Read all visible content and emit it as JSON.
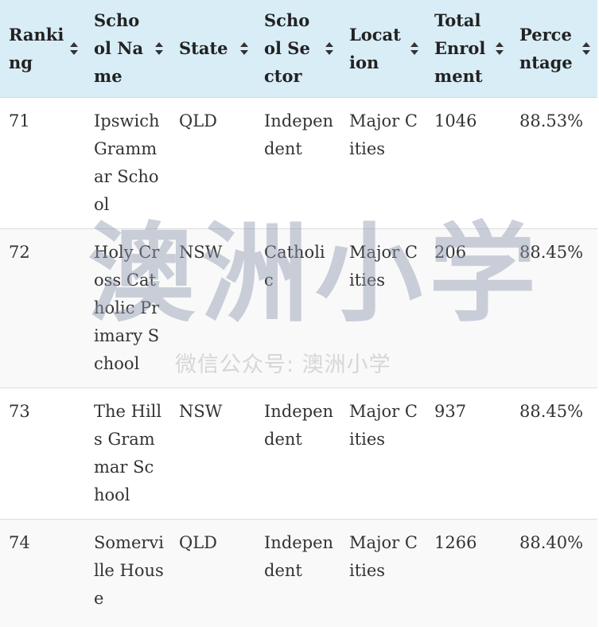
{
  "table": {
    "headers": [
      {
        "label": "Ranking"
      },
      {
        "label": "School Name"
      },
      {
        "label": "State"
      },
      {
        "label": "School Sector"
      },
      {
        "label": "Location"
      },
      {
        "label": "Total Enrolment"
      },
      {
        "label": "Percentage"
      }
    ],
    "rows": [
      {
        "ranking": "71",
        "school": "Ipswich Grammar School",
        "state": "QLD",
        "sector": "Independent",
        "location": "Major Cities",
        "enrolment": "1046",
        "percentage": "88.53%"
      },
      {
        "ranking": "72",
        "school": "Holy Cross Catholic Primary School",
        "state": "NSW",
        "sector": "Catholic",
        "location": "Major Cities",
        "enrolment": "206",
        "percentage": "88.45%"
      },
      {
        "ranking": "73",
        "school": "The Hills Grammar School",
        "state": "NSW",
        "sector": "Independent",
        "location": "Major Cities",
        "enrolment": "937",
        "percentage": "88.45%"
      },
      {
        "ranking": "74",
        "school": "Somerville House",
        "state": "QLD",
        "sector": "Independent",
        "location": "Major Cities",
        "enrolment": "1266",
        "percentage": "88.40%"
      }
    ]
  },
  "watermark": {
    "big_text": "澳洲小学",
    "caption": "微信公众号: 澳洲小学"
  },
  "colors": {
    "header_bg": "#d9edf7",
    "alt_row_bg": "#f9f9f9",
    "border": "#dddddd"
  }
}
